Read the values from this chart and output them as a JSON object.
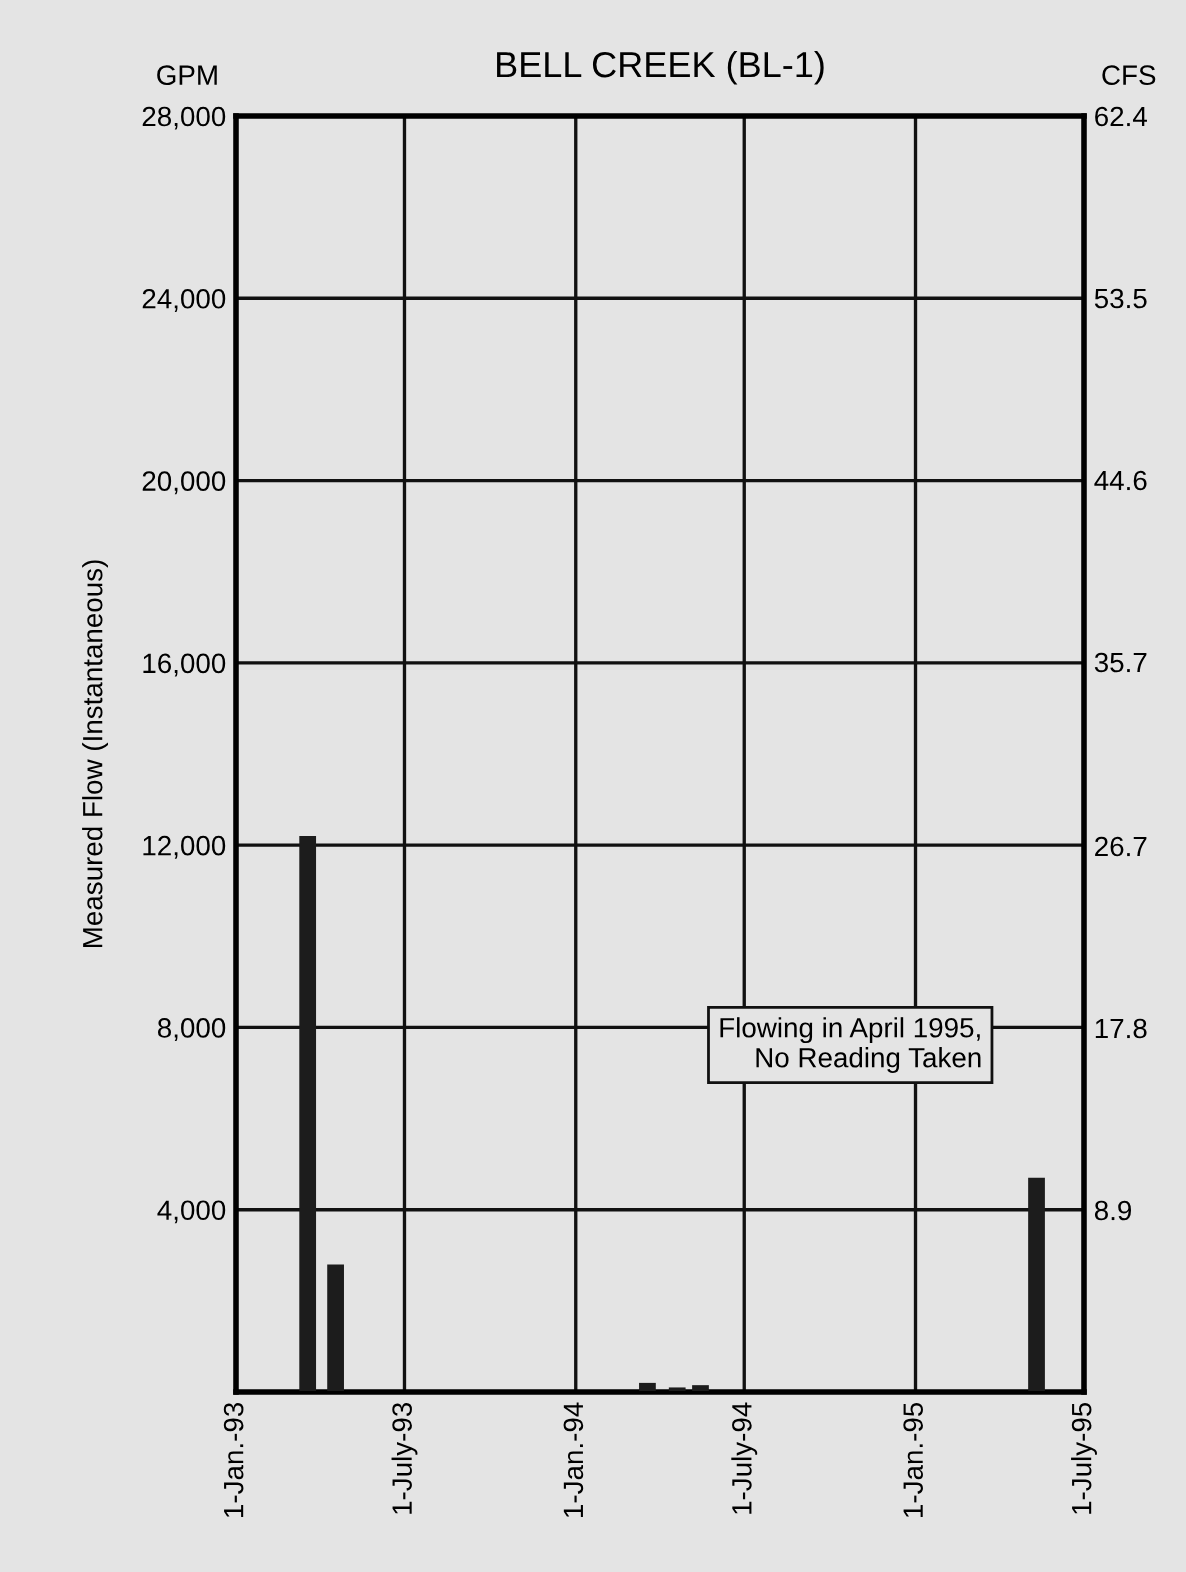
{
  "chart_data": {
    "type": "bar",
    "title": "BELL CREEK (BL-1)",
    "ylabel": "Measured Flow (Instantaneous)",
    "y2label": "CFS",
    "x": [
      "1993-03-19",
      "1993-04-18",
      "1994-03-19",
      "1994-04-20",
      "1994-05-15",
      "1995-05-11"
    ],
    "series": [
      {
        "color": "#1c1c1c",
        "values": [
          12200,
          2800,
          200,
          100,
          150,
          4700
        ]
      }
    ],
    "xlim": [
      "1993-01-01",
      "1995-07-01"
    ],
    "xticks": [
      {
        "value": "1993-01-01",
        "label": "1-Jan.-93"
      },
      {
        "value": "1993-07-01",
        "label": "1-July-93"
      },
      {
        "value": "1994-01-01",
        "label": "1-Jan.-94"
      },
      {
        "value": "1994-07-01",
        "label": "1-July-94"
      },
      {
        "value": "1995-01-01",
        "label": "1-Jan.-95"
      },
      {
        "value": "1995-07-01",
        "label": "1-July-95"
      }
    ],
    "ylim": [
      0,
      28000
    ],
    "yticks": [
      {
        "value": 4000,
        "label": "4,000"
      },
      {
        "value": 8000,
        "label": "8,000"
      },
      {
        "value": 12000,
        "label": "12,000"
      },
      {
        "value": 16000,
        "label": "16,000"
      },
      {
        "value": 20000,
        "label": "20,000"
      },
      {
        "value": 24000,
        "label": "24,000"
      },
      {
        "value": 28000,
        "label": "28,000"
      }
    ],
    "y2lim": [
      0,
      62.4
    ],
    "y2ticks": [
      8.9,
      17.8,
      26.7,
      35.7,
      44.6,
      53.5,
      62.4
    ],
    "grid": true,
    "annotations": [
      "GPM",
      "Flowing in April 1995,\nNo Reading Taken"
    ]
  }
}
